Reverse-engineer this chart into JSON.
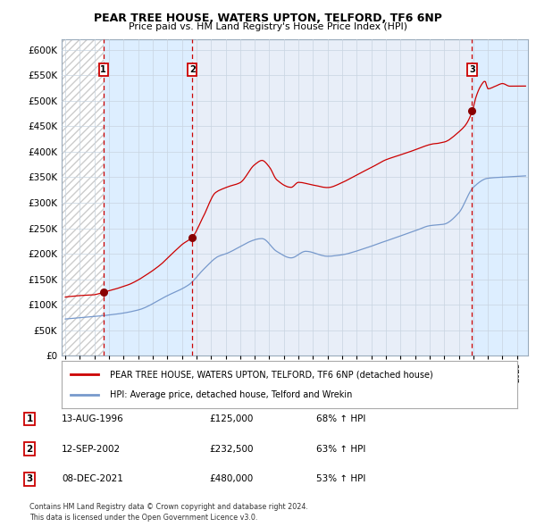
{
  "title1": "PEAR TREE HOUSE, WATERS UPTON, TELFORD, TF6 6NP",
  "title2": "Price paid vs. HM Land Registry's House Price Index (HPI)",
  "legend1": "PEAR TREE HOUSE, WATERS UPTON, TELFORD, TF6 6NP (detached house)",
  "legend2": "HPI: Average price, detached house, Telford and Wrekin",
  "sales": [
    {
      "label": "1",
      "date_num": 1996.615,
      "price": 125000,
      "pct": "68%",
      "date_str": "13-AUG-1996"
    },
    {
      "label": "2",
      "date_num": 2002.708,
      "price": 232500,
      "pct": "63%",
      "date_str": "12-SEP-2002"
    },
    {
      "label": "3",
      "date_num": 2021.917,
      "price": 480000,
      "pct": "53%",
      "date_str": "08-DEC-2021"
    }
  ],
  "note1": "Contains HM Land Registry data © Crown copyright and database right 2024.",
  "note2": "This data is licensed under the Open Government Licence v3.0.",
  "ylim": [
    0,
    620000
  ],
  "xlim_start": 1993.75,
  "xlim_end": 2025.75,
  "hpi_color": "#7799cc",
  "price_color": "#cc0000",
  "marker_color": "#880000",
  "vline_color": "#cc0000",
  "shade_color": "#ddeeff",
  "hatch_color": "#cccccc",
  "plot_bg": "#e8eef8",
  "grid_color": "#c8d4e0",
  "label_box_edge": "#cc0000",
  "hpi_anchors_t": [
    1994.0,
    1995.5,
    1997.0,
    1999.0,
    2001.0,
    2002.5,
    2003.5,
    2004.5,
    2005.0,
    2007.5,
    2008.5,
    2009.5,
    2010.5,
    2012.0,
    2013.0,
    2014.5,
    2016.0,
    2017.0,
    2018.0,
    2019.0,
    2020.0,
    2021.0,
    2022.0,
    2023.0,
    2024.0,
    2025.3
  ],
  "hpi_anchors_v": [
    72000,
    76000,
    80000,
    90000,
    118000,
    140000,
    170000,
    195000,
    200000,
    230000,
    205000,
    192000,
    205000,
    195000,
    198000,
    210000,
    225000,
    235000,
    245000,
    255000,
    258000,
    280000,
    330000,
    348000,
    350000,
    352000
  ],
  "price_anchors_t": [
    1994.0,
    1995.0,
    1996.0,
    1996.615,
    1997.5,
    1998.5,
    1999.5,
    2000.5,
    2001.5,
    2002.0,
    2002.708,
    2003.5,
    2004.3,
    2005.0,
    2006.0,
    2007.0,
    2007.5,
    2008.0,
    2008.5,
    2009.5,
    2010.0,
    2011.0,
    2012.0,
    2013.0,
    2014.0,
    2015.0,
    2016.0,
    2017.0,
    2018.0,
    2019.0,
    2020.0,
    2021.0,
    2021.5,
    2021.917,
    2022.2,
    2022.5,
    2022.8,
    2023.0,
    2023.5,
    2024.0,
    2024.5,
    2025.3
  ],
  "price_anchors_v": [
    115000,
    118000,
    120000,
    125000,
    132000,
    142000,
    158000,
    178000,
    205000,
    218000,
    232500,
    275000,
    320000,
    330000,
    340000,
    375000,
    383000,
    370000,
    345000,
    330000,
    340000,
    335000,
    330000,
    340000,
    355000,
    370000,
    385000,
    395000,
    405000,
    415000,
    420000,
    440000,
    455000,
    480000,
    510000,
    530000,
    540000,
    525000,
    530000,
    535000,
    530000,
    530000
  ]
}
